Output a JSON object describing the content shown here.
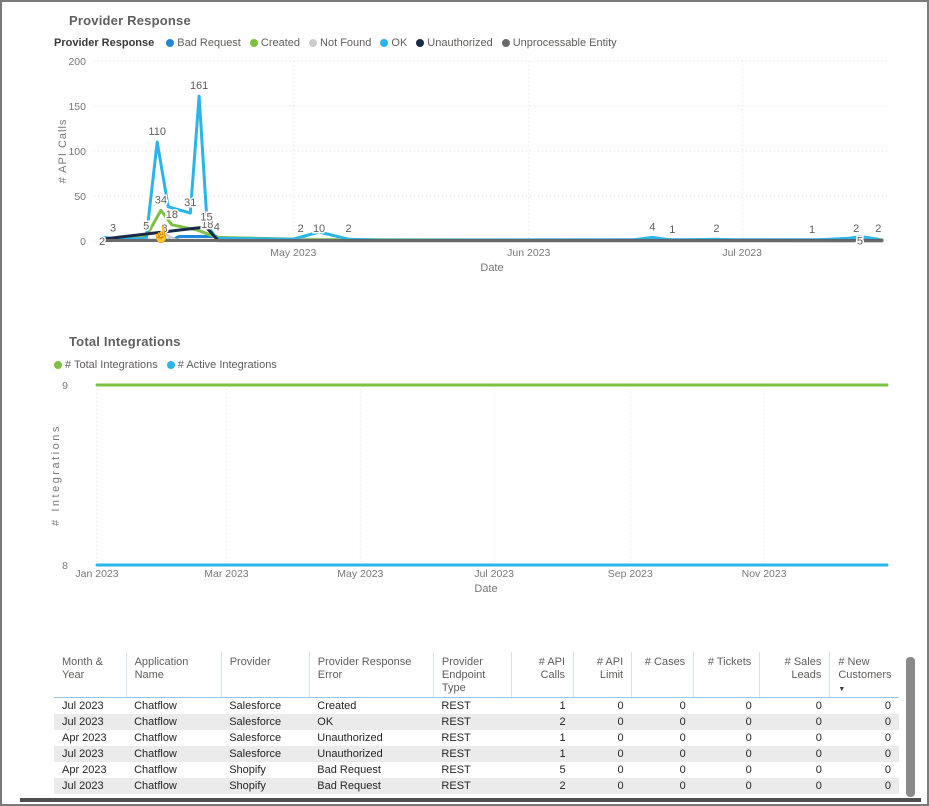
{
  "chart_data": [
    {
      "type": "line",
      "title": "Provider Response",
      "legend_title": "Provider Response",
      "xlabel": "Date",
      "ylabel": "# API Calls",
      "xlim": [
        0,
        106
      ],
      "ylim": [
        0,
        200
      ],
      "y_ticks": [
        0,
        50,
        100,
        150,
        200
      ],
      "x_ticks": [
        {
          "x": 26,
          "label": "May 2023"
        },
        {
          "x": 58,
          "label": "Jun 2023"
        },
        {
          "x": 87,
          "label": "Jul 2023"
        }
      ],
      "grid": "dotted",
      "legend_position": "top",
      "series": [
        {
          "name": "Bad Request",
          "color": "#1E88D9",
          "points": [
            [
              0,
              1
            ],
            [
              9.5,
              1
            ],
            [
              10.5,
              5
            ],
            [
              15.5,
              5
            ],
            [
              16.5,
              1
            ],
            [
              85,
              1.5
            ],
            [
              106,
              1.5
            ]
          ]
        },
        {
          "name": "Created",
          "color": "#7DC142",
          "points": [
            [
              0,
              2
            ],
            [
              6,
              5,
              "5"
            ],
            [
              8,
              34,
              "34"
            ],
            [
              9.5,
              18,
              "18"
            ],
            [
              13,
              12
            ],
            [
              15.6,
              4,
              "4"
            ],
            [
              27,
              2,
              "2"
            ],
            [
              35,
              1.5
            ],
            [
              60,
              1
            ],
            [
              90,
              1
            ],
            [
              101,
              1
            ],
            [
              102.5,
              2,
              "2"
            ],
            [
              106,
              1.5
            ]
          ]
        },
        {
          "name": "Not Found",
          "color": "#CCCCCC",
          "points": [
            [
              0,
              1
            ],
            [
              7.5,
              1
            ],
            [
              8.5,
              8,
              "8",
              -2
            ],
            [
              10,
              1
            ],
            [
              106,
              0.8
            ]
          ]
        },
        {
          "name": "OK",
          "color": "#29B5E8",
          "points": [
            [
              0,
              4
            ],
            [
              1.5,
              3,
              "3"
            ],
            [
              3,
              2
            ],
            [
              6,
              3
            ],
            [
              7.5,
              110,
              "110"
            ],
            [
              9,
              38
            ],
            [
              12,
              31,
              "31"
            ],
            [
              13.2,
              161,
              "161"
            ],
            [
              14.3,
              18,
              "18",
              3
            ],
            [
              15.5,
              3
            ],
            [
              26,
              2
            ],
            [
              29.5,
              10,
              "10",
              0
            ],
            [
              33.5,
              2,
              "2"
            ],
            [
              38,
              1
            ],
            [
              72,
              1
            ],
            [
              74.8,
              4,
              "4"
            ],
            [
              77.5,
              1,
              "1"
            ],
            [
              83.5,
              2,
              "2"
            ],
            [
              86,
              1
            ],
            [
              96.5,
              1,
              "1"
            ],
            [
              101.5,
              3
            ],
            [
              103,
              5,
              "5",
              8
            ],
            [
              105.5,
              2,
              "2"
            ]
          ]
        },
        {
          "name": "Unauthorized",
          "color": "#1B2A49",
          "points": [
            [
              0,
              2,
              "2",
              6
            ],
            [
              13.5,
              15
            ],
            [
              14.2,
              15,
              "15"
            ],
            [
              15.8,
              0.5
            ],
            [
              106,
              0.5
            ]
          ]
        },
        {
          "name": "Unprocessable Entity",
          "color": "#6A6A6A",
          "points": [
            [
              0,
              0.6
            ],
            [
              106,
              0.3
            ]
          ]
        }
      ]
    },
    {
      "type": "line",
      "title": "Total Integrations",
      "xlabel": "Date",
      "ylabel": "# Integrations",
      "xlim": [
        0,
        360
      ],
      "ylim": [
        8,
        9
      ],
      "y_ticks": [
        8,
        9
      ],
      "x_ticks": [
        {
          "x": 0,
          "label": "Jan 2023"
        },
        {
          "x": 59,
          "label": "Mar 2023"
        },
        {
          "x": 120,
          "label": "May 2023"
        },
        {
          "x": 181,
          "label": "Jul 2023"
        },
        {
          "x": 243,
          "label": "Sep 2023"
        },
        {
          "x": 304,
          "label": "Nov 2023"
        }
      ],
      "grid": "dotted-vertical",
      "legend_position": "top",
      "series": [
        {
          "name": "# Total Integrations",
          "color": "#7DC142",
          "points": [
            [
              0,
              9
            ],
            [
              360,
              9
            ]
          ]
        },
        {
          "name": "# Active Integrations",
          "color": "#29B5E8",
          "points": [
            [
              0,
              8
            ],
            [
              360,
              8
            ]
          ]
        }
      ]
    }
  ],
  "table": {
    "columns": [
      {
        "label": "Month & Year",
        "align": "left"
      },
      {
        "label": "Application Name",
        "align": "left"
      },
      {
        "label": "Provider",
        "align": "left"
      },
      {
        "label": "Provider Response Error",
        "align": "left"
      },
      {
        "label": "Provider Endpoint Type",
        "align": "left"
      },
      {
        "label": "# API Calls",
        "align": "right"
      },
      {
        "label": "# API Limit",
        "align": "right"
      },
      {
        "label": "# Cases",
        "align": "right"
      },
      {
        "label": "# Tickets",
        "align": "right"
      },
      {
        "label": "# Sales Leads",
        "align": "right"
      },
      {
        "label": "# New Customers",
        "align": "right",
        "header_align": "left",
        "sorted": "desc"
      }
    ],
    "sort_glyph": "▼",
    "rows": [
      [
        "Jul 2023",
        "Chatflow",
        "Salesforce",
        "Created",
        "REST",
        "1",
        "0",
        "0",
        "0",
        "0",
        "0"
      ],
      [
        "Jul 2023",
        "Chatflow",
        "Salesforce",
        "OK",
        "REST",
        "2",
        "0",
        "0",
        "0",
        "0",
        "0"
      ],
      [
        "Apr 2023",
        "Chatflow",
        "Salesforce",
        "Unauthorized",
        "REST",
        "1",
        "0",
        "0",
        "0",
        "0",
        "0"
      ],
      [
        "Jul 2023",
        "Chatflow",
        "Salesforce",
        "Unauthorized",
        "REST",
        "1",
        "0",
        "0",
        "0",
        "0",
        "0"
      ],
      [
        "Apr 2023",
        "Chatflow",
        "Shopify",
        "Bad Request",
        "REST",
        "5",
        "0",
        "0",
        "0",
        "0",
        "0"
      ],
      [
        "Jul 2023",
        "Chatflow",
        "Shopify",
        "Bad Request",
        "REST",
        "2",
        "0",
        "0",
        "0",
        "0",
        "0"
      ]
    ]
  },
  "icons": {
    "cursor": "☝"
  }
}
